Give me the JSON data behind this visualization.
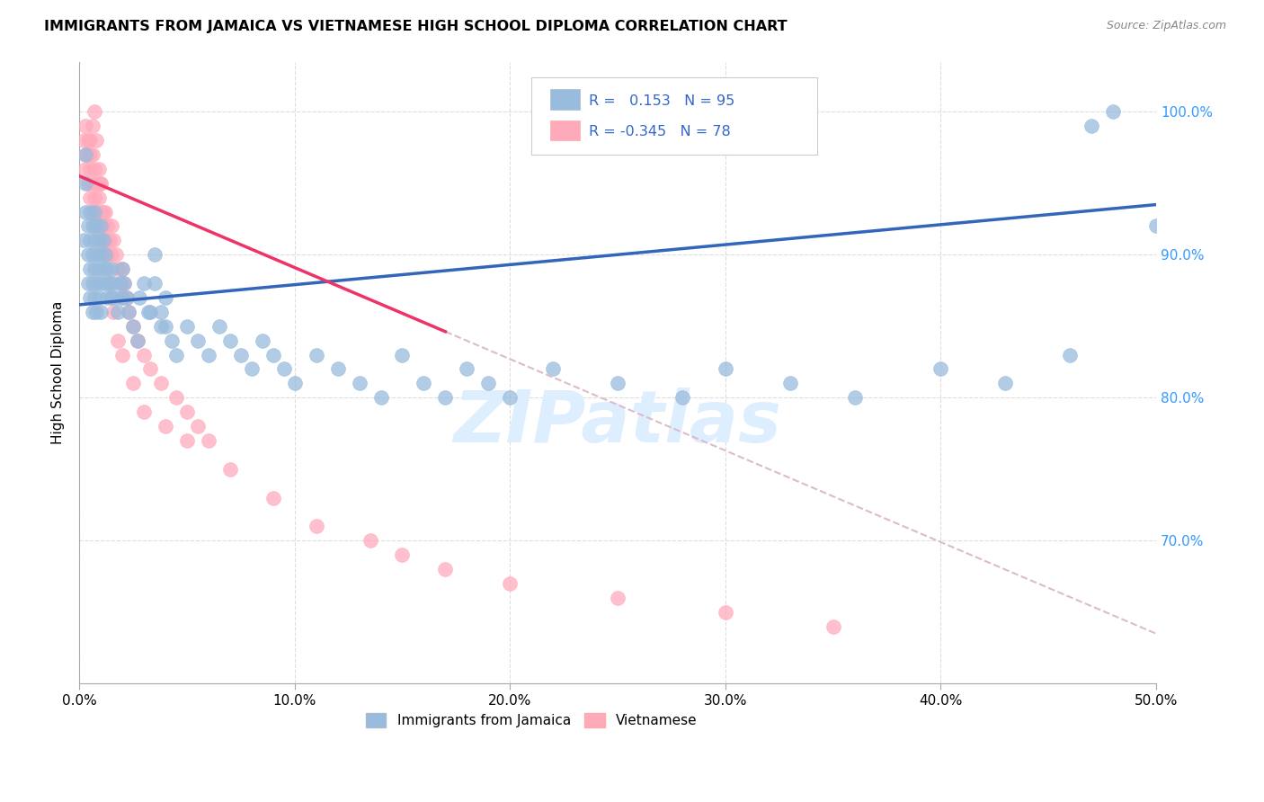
{
  "title": "IMMIGRANTS FROM JAMAICA VS VIETNAMESE HIGH SCHOOL DIPLOMA CORRELATION CHART",
  "source": "Source: ZipAtlas.com",
  "ylabel": "High School Diploma",
  "xlim": [
    0.0,
    50.0
  ],
  "ylim": [
    60.0,
    103.5
  ],
  "yticks": [
    60.0,
    70.0,
    80.0,
    90.0,
    100.0
  ],
  "ytick_labels_right": [
    "",
    "70.0%",
    "80.0%",
    "90.0%",
    "100.0%"
  ],
  "xticks": [
    0.0,
    10.0,
    20.0,
    30.0,
    40.0,
    50.0
  ],
  "R_jamaica": 0.153,
  "N_jamaica": 95,
  "R_vietnamese": -0.345,
  "N_vietnamese": 78,
  "color_jamaica": "#99BBDD",
  "color_vietnamese": "#FFAABB",
  "color_jamaica_line": "#3366BB",
  "color_vietnamese_line": "#EE3366",
  "color_vietnamese_dashed": "#DDBBCC",
  "watermark": "ZIPatlas",
  "watermark_color": "#DDEEFF",
  "background": "#FFFFFF",
  "grid_color": "#DDDDDD",
  "jamaica_line_x0": 0.0,
  "jamaica_line_y0": 86.5,
  "jamaica_line_x1": 50.0,
  "jamaica_line_y1": 93.5,
  "vietnamese_line_x0": 0.0,
  "vietnamese_line_y0": 95.5,
  "vietnamese_line_x1": 50.0,
  "vietnamese_line_y1": 63.5,
  "vietnamese_solid_end": 17.0,
  "jamaica_x": [
    0.2,
    0.3,
    0.3,
    0.3,
    0.4,
    0.4,
    0.4,
    0.5,
    0.5,
    0.5,
    0.5,
    0.6,
    0.6,
    0.6,
    0.6,
    0.7,
    0.7,
    0.7,
    0.7,
    0.8,
    0.8,
    0.8,
    0.8,
    0.9,
    0.9,
    0.9,
    1.0,
    1.0,
    1.0,
    1.0,
    1.1,
    1.1,
    1.2,
    1.2,
    1.3,
    1.3,
    1.4,
    1.5,
    1.5,
    1.6,
    1.7,
    1.8,
    1.9,
    2.0,
    2.0,
    2.1,
    2.2,
    2.3,
    2.5,
    2.7,
    3.0,
    3.2,
    3.5,
    3.5,
    3.8,
    4.0,
    4.0,
    4.3,
    4.5,
    5.0,
    5.5,
    6.0,
    6.5,
    7.0,
    7.5,
    8.0,
    8.5,
    9.0,
    9.5,
    10.0,
    11.0,
    12.0,
    13.0,
    14.0,
    15.0,
    16.0,
    17.0,
    18.0,
    19.0,
    20.0,
    22.0,
    25.0,
    28.0,
    30.0,
    33.0,
    36.0,
    40.0,
    43.0,
    46.0,
    47.0,
    48.0,
    50.0,
    2.8,
    3.3,
    3.8
  ],
  "jamaica_y": [
    91,
    93,
    95,
    97,
    88,
    90,
    92,
    87,
    89,
    91,
    93,
    86,
    88,
    90,
    92,
    87,
    89,
    91,
    93,
    86,
    88,
    90,
    92,
    87,
    89,
    91,
    86,
    88,
    90,
    92,
    89,
    91,
    88,
    90,
    87,
    89,
    88,
    87,
    89,
    88,
    87,
    86,
    88,
    87,
    89,
    88,
    87,
    86,
    85,
    84,
    88,
    86,
    90,
    88,
    86,
    87,
    85,
    84,
    83,
    85,
    84,
    83,
    85,
    84,
    83,
    82,
    84,
    83,
    82,
    81,
    83,
    82,
    81,
    80,
    83,
    81,
    80,
    82,
    81,
    80,
    82,
    81,
    80,
    82,
    81,
    80,
    82,
    81,
    83,
    99,
    100,
    92,
    87,
    86,
    85
  ],
  "vietnamese_x": [
    0.2,
    0.3,
    0.3,
    0.3,
    0.4,
    0.4,
    0.5,
    0.5,
    0.5,
    0.6,
    0.6,
    0.6,
    0.7,
    0.7,
    0.7,
    0.8,
    0.8,
    0.9,
    0.9,
    1.0,
    1.0,
    1.0,
    1.1,
    1.1,
    1.2,
    1.2,
    1.3,
    1.3,
    1.4,
    1.5,
    1.5,
    1.6,
    1.7,
    1.8,
    1.9,
    2.0,
    2.0,
    2.1,
    2.2,
    2.3,
    2.5,
    2.7,
    3.0,
    3.3,
    3.8,
    4.5,
    5.0,
    5.5,
    6.0,
    0.4,
    0.5,
    0.6,
    0.7,
    0.8,
    0.9,
    1.0,
    1.1,
    1.2,
    1.3,
    1.4,
    1.5,
    1.6,
    1.8,
    2.0,
    2.5,
    3.0,
    4.0,
    5.0,
    7.0,
    9.0,
    11.0,
    13.5,
    15.0,
    17.0,
    20.0,
    25.0,
    30.0,
    35.0
  ],
  "vietnamese_y": [
    98,
    96,
    97,
    99,
    95,
    97,
    94,
    96,
    98,
    93,
    95,
    97,
    92,
    94,
    96,
    93,
    95,
    92,
    94,
    91,
    93,
    95,
    90,
    92,
    91,
    93,
    90,
    92,
    91,
    90,
    92,
    91,
    90,
    89,
    88,
    87,
    89,
    88,
    87,
    86,
    85,
    84,
    83,
    82,
    81,
    80,
    79,
    78,
    77,
    98,
    97,
    99,
    100,
    98,
    96,
    95,
    93,
    91,
    90,
    88,
    87,
    86,
    84,
    83,
    81,
    79,
    78,
    77,
    75,
    73,
    71,
    70,
    69,
    68,
    67,
    66,
    65,
    64
  ]
}
